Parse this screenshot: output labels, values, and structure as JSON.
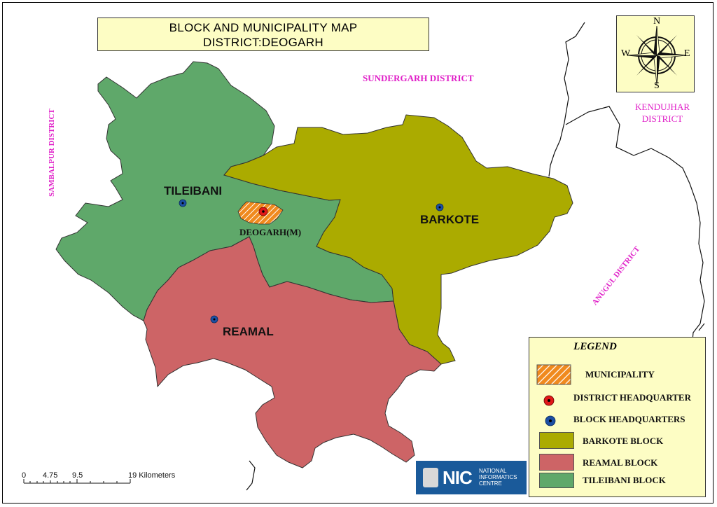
{
  "title": {
    "line1": "BLOCK AND MUNICIPALITY MAP",
    "line2": "DISTRICT:DEOGARH"
  },
  "compass": {
    "n": "N",
    "s": "S",
    "e": "E",
    "w": "W"
  },
  "neighbors": {
    "sundergarh": "SUNDERGARH DISTRICT",
    "sambalpur": "SAMBALPUR DISTRICT",
    "kendujhar_line1": "KENDUJHAR",
    "kendujhar_line2": "DISTRICT",
    "anugul": "ANUGUL DISTRICT"
  },
  "blocks": {
    "tileibani": "TILEIBANI",
    "barkote": "BARKOTE",
    "reamal": "REAMAL",
    "municipality": "DEOGARH(M)"
  },
  "colors": {
    "tileibani": "#5fa86a",
    "barkote": "#abab00",
    "reamal": "#cd6466",
    "municipality": "#f08a1e",
    "block_hq": "#1c4fa3",
    "district_hq": "#e01818",
    "panel": "#fdfdc4",
    "neighbor_text": "#e020c8"
  },
  "legend": {
    "title": "LEGEND",
    "items": [
      {
        "label": "MUNICIPALITY"
      },
      {
        "label": "DISTRICT HEADQUARTER"
      },
      {
        "label": "BLOCK HEADQUARTERS"
      },
      {
        "label": "BARKOTE BLOCK"
      },
      {
        "label": "REAMAL BLOCK"
      },
      {
        "label": "TILEIBANI BLOCK"
      }
    ]
  },
  "scale": {
    "ticks": [
      "0",
      "4.75",
      "9.5",
      "19 Kilometers"
    ]
  },
  "logo": {
    "mark": "NIC",
    "line1": "NATIONAL",
    "line2": "INFORMATICS",
    "line3": "CENTRE"
  }
}
